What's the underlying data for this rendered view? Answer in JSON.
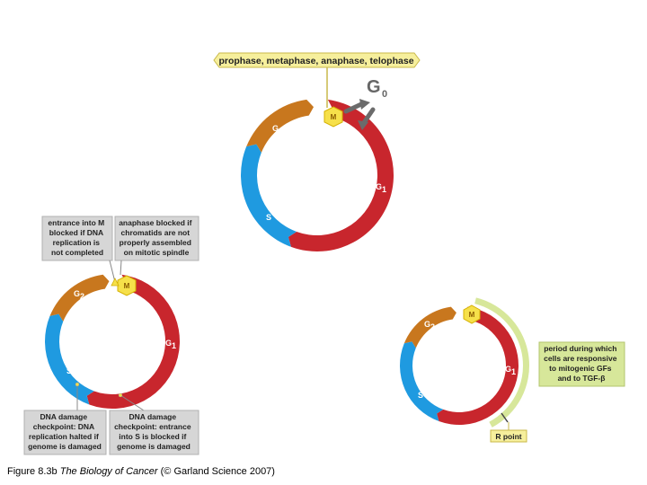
{
  "diagram_top": {
    "banner": "prophase, metaphase, anaphase, telophase",
    "g0": "G",
    "g0_sub": "0",
    "phases": {
      "m": "M",
      "g2": "G",
      "g2_sub": "2",
      "s": "S",
      "g1": "G",
      "g1_sub": "1"
    }
  },
  "diagram_left": {
    "box_entrance_m": [
      "entrance into M",
      "blocked if DNA",
      "replication is",
      "not completed"
    ],
    "box_anaphase": [
      "anaphase blocked if",
      "chromatids are not",
      "properly assembled",
      "on mitotic spindle"
    ],
    "box_dna_s": [
      "DNA damage",
      "checkpoint: DNA",
      "replication halted if",
      "genome is damaged"
    ],
    "box_dna_g1": [
      "DNA damage",
      "checkpoint: entrance",
      "into S is blocked if",
      "genome is damaged"
    ],
    "phases": {
      "m": "M",
      "g2": "G",
      "g2_sub": "2",
      "s": "S",
      "g1": "G",
      "g1_sub": "1"
    }
  },
  "diagram_right": {
    "box_period": [
      "period during which",
      "cells are responsive",
      "to mitogenic GFs",
      "and to TGF-β"
    ],
    "r_point": "R point",
    "phases": {
      "m": "M",
      "g2": "G",
      "g2_sub": "2",
      "s": "S",
      "g1": "G",
      "g1_sub": "1"
    }
  },
  "caption": {
    "figure": "Figure 8.3b",
    "book": "The Biology of Cancer",
    "credit": "(© Garland Science 2007)"
  },
  "colors": {
    "g1": "#c8262d",
    "s": "#1f9ae0",
    "g2": "#c8771e",
    "m": "#f6e04a",
    "box_fill": "#d6d6d6",
    "banner_fill": "#f6ef9c",
    "r_arc": "#d7e79a",
    "g0_arrow": "#6b6b6b"
  }
}
